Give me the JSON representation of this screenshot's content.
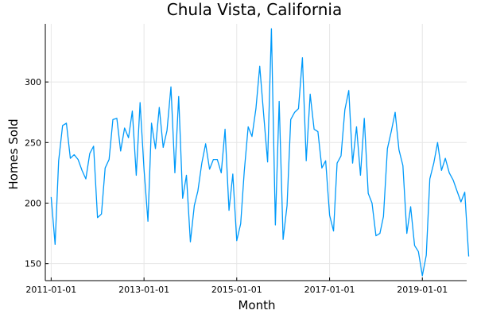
{
  "chart_data": {
    "type": "line",
    "title": "Chula Vista, California",
    "xlabel": "Month",
    "ylabel": "Homes Sold",
    "xlim": [
      "2010-11-16",
      "2019-12-16"
    ],
    "ylim": [
      136,
      348
    ],
    "x_ticks": [
      "2011-01-01",
      "2013-01-01",
      "2015-01-01",
      "2017-01-01",
      "2019-01-01"
    ],
    "y_ticks": [
      150,
      200,
      250,
      300
    ],
    "grid": true,
    "legend": "none",
    "series_color": "#009AFA",
    "series": [
      {
        "start_month": "2011-01",
        "frequency": "monthly",
        "values": [
          205,
          166,
          235,
          264,
          266,
          237,
          240,
          236,
          227,
          220,
          241,
          247,
          188,
          191,
          229,
          236,
          269,
          270,
          243,
          262,
          254,
          276,
          223,
          283,
          228,
          185,
          266,
          245,
          279,
          246,
          260,
          296,
          225,
          288,
          204,
          223,
          168,
          198,
          210,
          233,
          249,
          228,
          236,
          236,
          225,
          261,
          194,
          224,
          169,
          183,
          226,
          263,
          255,
          278,
          313,
          273,
          234,
          344,
          182,
          284,
          170,
          198,
          269,
          275,
          278,
          320,
          235,
          290,
          261,
          259,
          229,
          235,
          190,
          177,
          233,
          239,
          277,
          293,
          233,
          263,
          223,
          270,
          208,
          200,
          173,
          175,
          189,
          245,
          259,
          275,
          244,
          231,
          175,
          197,
          165,
          160,
          140,
          157,
          220,
          233,
          250,
          227,
          237,
          225,
          219,
          210,
          201,
          209,
          156
        ]
      }
    ]
  }
}
